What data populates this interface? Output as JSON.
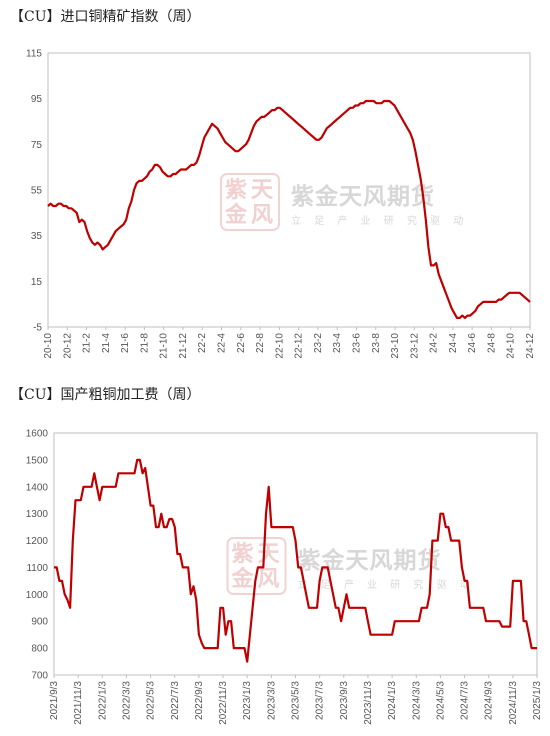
{
  "watermark": {
    "brand": "紫金天风期货",
    "slogan": "立 足 产 业   研 究 驱 动",
    "logo": "紫天金风"
  },
  "chart_data": [
    {
      "type": "line",
      "title": "【CU】进口铜精矿指数（周）",
      "ylim": [
        -5,
        115
      ],
      "yticks": [
        -5,
        15,
        35,
        55,
        75,
        95,
        115
      ],
      "xticks": [
        "20-10",
        "20-12",
        "21-2",
        "21-4",
        "21-6",
        "21-8",
        "21-10",
        "21-12",
        "22-2",
        "22-4",
        "22-6",
        "22-8",
        "22-10",
        "22-12",
        "23-2",
        "23-4",
        "23-6",
        "23-8",
        "23-10",
        "23-12",
        "24-2",
        "24-4",
        "24-6",
        "24-8",
        "24-10",
        "24-12"
      ],
      "grid": false,
      "color": "#c00000",
      "series": [
        {
          "values": [
            48,
            49,
            48,
            48,
            49,
            49,
            48,
            48,
            47,
            47,
            46,
            45,
            41,
            42,
            41,
            37,
            34,
            32,
            31,
            32,
            31,
            29,
            30,
            31,
            33,
            35,
            37,
            38,
            39,
            40,
            42,
            47,
            50,
            55,
            58,
            59,
            59,
            60,
            61,
            63,
            64,
            66,
            66,
            65,
            63,
            62,
            61,
            61,
            62,
            62,
            63,
            64,
            64,
            64,
            65,
            66,
            66,
            67,
            70,
            74,
            78,
            80,
            82,
            84,
            83,
            82,
            80,
            78,
            76,
            75,
            74,
            73,
            72,
            72,
            73,
            74,
            75,
            77,
            80,
            83,
            85,
            86,
            87,
            87,
            88,
            89,
            90,
            90,
            91,
            91,
            90,
            89,
            88,
            87,
            86,
            85,
            84,
            83,
            82,
            81,
            80,
            79,
            78,
            77,
            77,
            78,
            80,
            82,
            83,
            84,
            85,
            86,
            87,
            88,
            89,
            90,
            91,
            91,
            92,
            92,
            93,
            93,
            94,
            94,
            94,
            94,
            93,
            93,
            93,
            94,
            94,
            94,
            93,
            92,
            90,
            88,
            86,
            84,
            82,
            80,
            77,
            72,
            66,
            60,
            52,
            42,
            30,
            22,
            22,
            23,
            18,
            15,
            12,
            9,
            6,
            3,
            1,
            -1,
            -1,
            0,
            -1,
            0,
            0,
            1,
            2,
            4,
            5,
            6,
            6,
            6,
            6,
            6,
            6,
            7,
            7,
            8,
            9,
            10,
            10,
            10,
            10,
            10,
            9,
            8,
            7,
            6
          ]
        }
      ]
    },
    {
      "type": "line",
      "title": "【CU】国产粗铜加工费（周）",
      "ylim": [
        700,
        1600
      ],
      "yticks": [
        700,
        800,
        900,
        1000,
        1100,
        1200,
        1300,
        1400,
        1500,
        1600
      ],
      "xticks": [
        "2021/9/3",
        "2021/11/3",
        "2022/1/3",
        "2022/3/3",
        "2022/5/3",
        "2022/7/3",
        "2022/9/3",
        "2022/11/3",
        "2023/1/3",
        "2023/3/3",
        "2023/5/3",
        "2023/7/3",
        "2023/9/3",
        "2023/11/3",
        "2024/1/3",
        "2024/3/3",
        "2024/5/3",
        "2024/7/3",
        "2024/9/3",
        "2024/11/3",
        "2025/1/3"
      ],
      "grid": false,
      "color": "#c00000",
      "series": [
        {
          "values": [
            1100,
            1100,
            1050,
            1050,
            1000,
            980,
            950,
            1200,
            1350,
            1350,
            1350,
            1400,
            1400,
            1400,
            1400,
            1450,
            1400,
            1350,
            1400,
            1400,
            1400,
            1400,
            1400,
            1400,
            1450,
            1450,
            1450,
            1450,
            1450,
            1450,
            1450,
            1500,
            1500,
            1450,
            1470,
            1400,
            1330,
            1330,
            1250,
            1250,
            1300,
            1250,
            1250,
            1280,
            1280,
            1250,
            1150,
            1150,
            1100,
            1100,
            1100,
            1000,
            1030,
            980,
            850,
            820,
            800,
            800,
            800,
            800,
            800,
            800,
            950,
            950,
            850,
            900,
            900,
            800,
            800,
            800,
            800,
            800,
            750,
            850,
            950,
            1050,
            1100,
            1100,
            1100,
            1300,
            1400,
            1250,
            1250,
            1250,
            1250,
            1250,
            1250,
            1250,
            1250,
            1250,
            1200,
            1100,
            1100,
            1050,
            1000,
            950,
            950,
            950,
            950,
            1050,
            1100,
            1100,
            1100,
            1050,
            1000,
            950,
            950,
            900,
            950,
            1000,
            950,
            950,
            950,
            950,
            950,
            950,
            950,
            900,
            850,
            850,
            850,
            850,
            850,
            850,
            850,
            850,
            850,
            900,
            900,
            900,
            900,
            900,
            900,
            900,
            900,
            900,
            900,
            950,
            950,
            950,
            1000,
            1200,
            1200,
            1200,
            1300,
            1300,
            1250,
            1250,
            1200,
            1200,
            1200,
            1200,
            1100,
            1050,
            1050,
            950,
            950,
            950,
            950,
            950,
            950,
            900,
            900,
            900,
            900,
            900,
            900,
            880,
            880,
            880,
            880,
            1050,
            1050,
            1050,
            1050,
            900,
            900,
            850,
            800,
            800,
            800
          ]
        }
      ]
    }
  ]
}
